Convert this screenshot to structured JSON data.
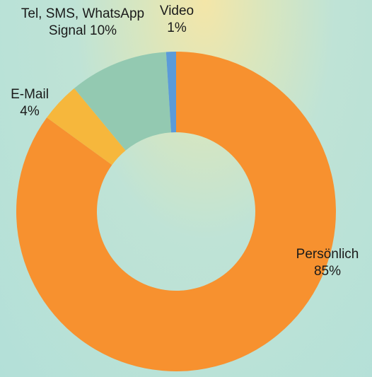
{
  "chart_data": {
    "type": "donut",
    "categories": [
      "Persönlich",
      "E-Mail",
      "Tel, SMS, WhatsApp Signal",
      "Video"
    ],
    "values": [
      85,
      4,
      10,
      1
    ],
    "value_labels": [
      "85%",
      "4%",
      "10%",
      "1%"
    ],
    "colors": [
      "#f7912f",
      "#f6b73c",
      "#93c9b1",
      "#5b9bd9"
    ]
  }
}
